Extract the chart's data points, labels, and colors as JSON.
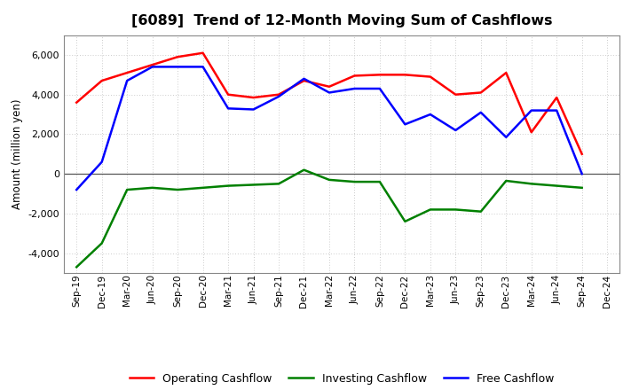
{
  "title": "[6089]  Trend of 12-Month Moving Sum of Cashflows",
  "ylabel": "Amount (million yen)",
  "x_labels": [
    "Sep-19",
    "Dec-19",
    "Mar-20",
    "Jun-20",
    "Sep-20",
    "Dec-20",
    "Mar-21",
    "Jun-21",
    "Sep-21",
    "Dec-21",
    "Mar-22",
    "Jun-22",
    "Sep-22",
    "Dec-22",
    "Mar-23",
    "Jun-23",
    "Sep-23",
    "Dec-23",
    "Mar-24",
    "Jun-24",
    "Sep-24",
    "Dec-24"
  ],
  "operating": [
    3600,
    4700,
    5100,
    5500,
    5900,
    6100,
    4000,
    3850,
    4000,
    4700,
    4400,
    4950,
    5000,
    5000,
    4900,
    4000,
    4100,
    5100,
    2100,
    3850,
    1000,
    null
  ],
  "investing": [
    -4700,
    -3500,
    -800,
    -700,
    -800,
    -700,
    -600,
    -550,
    -500,
    200,
    -300,
    -400,
    -400,
    -2400,
    -1800,
    -1800,
    -1900,
    -350,
    -500,
    -600,
    -700,
    null
  ],
  "free": [
    -800,
    600,
    4700,
    5400,
    5400,
    5400,
    3300,
    3250,
    3900,
    4800,
    4100,
    4300,
    4300,
    2500,
    3000,
    2200,
    3100,
    1850,
    3200,
    3200,
    0,
    null
  ],
  "ylim": [
    -5000,
    7000
  ],
  "yticks": [
    -4000,
    -2000,
    0,
    2000,
    4000,
    6000
  ],
  "legend_labels": [
    "Operating Cashflow",
    "Investing Cashflow",
    "Free Cashflow"
  ],
  "line_colors": [
    "#ff0000",
    "#008000",
    "#0000ff"
  ],
  "background_color": "#ffffff",
  "grid_color": "#bbbbbb"
}
